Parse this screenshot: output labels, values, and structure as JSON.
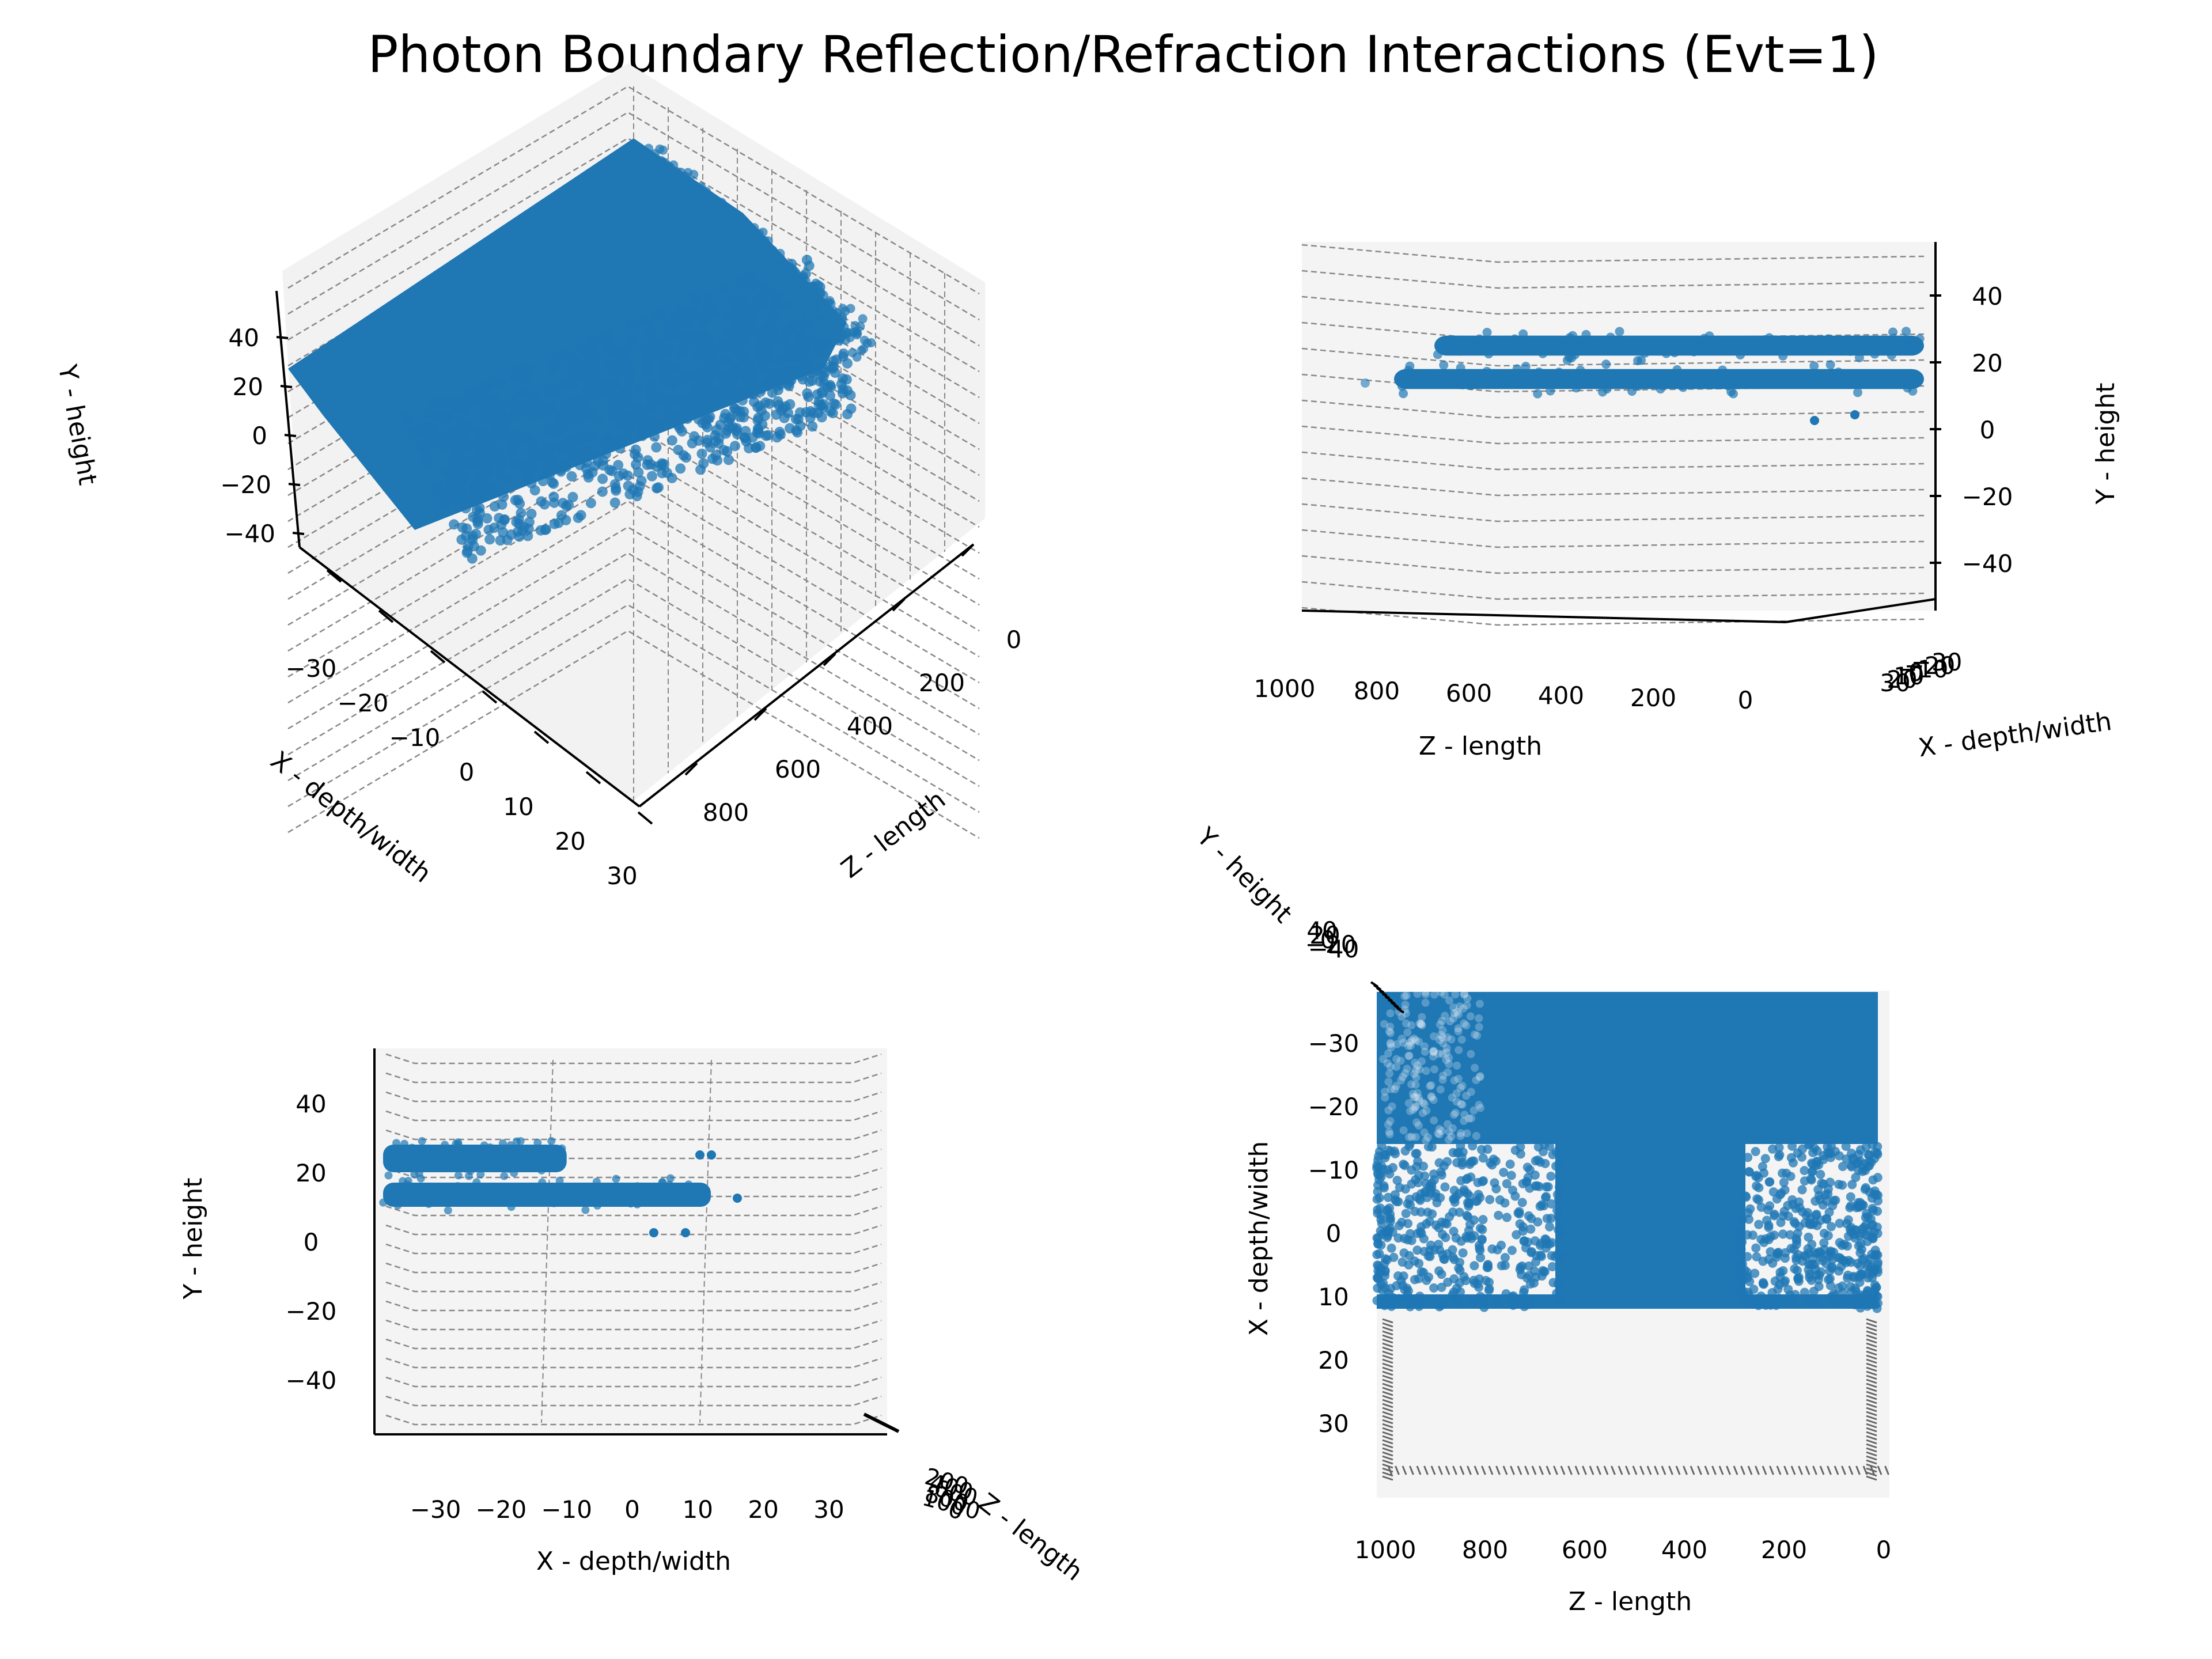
{
  "chart_data": {
    "type": "scatter",
    "title": "Photon Boundary Reflection/Refraction Interactions (Evt=1)",
    "marker_color": "#1f77b4",
    "panels": [
      {
        "view": "3d-isometric",
        "xlabel": "X - depth/width",
        "ylabel": "Y - height",
        "zlabel": "Z - length",
        "x_ticks": [
          "−30",
          "−20",
          "−10",
          "0",
          "10",
          "20",
          "30"
        ],
        "y_ticks": [
          "40",
          "20",
          "0",
          "−20",
          "−40"
        ],
        "z_ticks": [
          "0",
          "200",
          "400",
          "600",
          "800"
        ],
        "xlim": [
          -35,
          35
        ],
        "ylim": [
          -50,
          50
        ],
        "zlim": [
          0,
          1000
        ]
      },
      {
        "view": "3d-side",
        "xlabel": "Z - length",
        "ylabel": "Y - height",
        "zlabel": "X - depth/width",
        "z_ticks": [
          "1000",
          "800",
          "600",
          "400",
          "200",
          "0"
        ],
        "y_ticks": [
          "40",
          "20",
          "0",
          "−20",
          "−40"
        ],
        "x_ticks": [
          "30",
          "20",
          "10",
          "0",
          "−10",
          "−20",
          "−30"
        ],
        "bands_y": [
          {
            "y_min": 22,
            "y_max": 28,
            "z_min": 0,
            "z_max": 860
          },
          {
            "y_min": 12,
            "y_max": 18,
            "z_min": 0,
            "z_max": 1000
          }
        ]
      },
      {
        "view": "3d-front",
        "xlabel": "X - depth/width",
        "ylabel": "Y - height",
        "zlabel": "Z - length",
        "x_ticks": [
          "−30",
          "−20",
          "−10",
          "0",
          "10",
          "20",
          "30"
        ],
        "y_ticks": [
          "40",
          "20",
          "0",
          "−20",
          "−40"
        ],
        "z_ticks": [
          "200",
          "400",
          "600",
          "800",
          "1000",
          "0"
        ],
        "bands_y": [
          {
            "y_min": 20,
            "y_max": 28,
            "x_min": -38,
            "x_max": -10
          },
          {
            "y_min": 10,
            "y_max": 17,
            "x_min": -38,
            "x_max": 12
          }
        ]
      },
      {
        "view": "3d-top",
        "xlabel": "Z - length",
        "ylabel": "X - depth/width",
        "zlabel": "Y - height",
        "x_ticks": [
          "1000",
          "800",
          "600",
          "400",
          "200",
          "0"
        ],
        "y_ticks": [
          "−30",
          "−20",
          "−10",
          "0",
          "10",
          "20",
          "30"
        ],
        "z_ticks": [
          "40",
          "20",
          "0",
          "−20",
          "−40"
        ],
        "dense_region": {
          "x_min": -38,
          "x_max": -14,
          "z_min": 0,
          "z_max": 1000
        },
        "sparse_region": {
          "x_min": -14,
          "x_max": 12,
          "z_min": 0,
          "z_max": 1000
        }
      }
    ]
  }
}
